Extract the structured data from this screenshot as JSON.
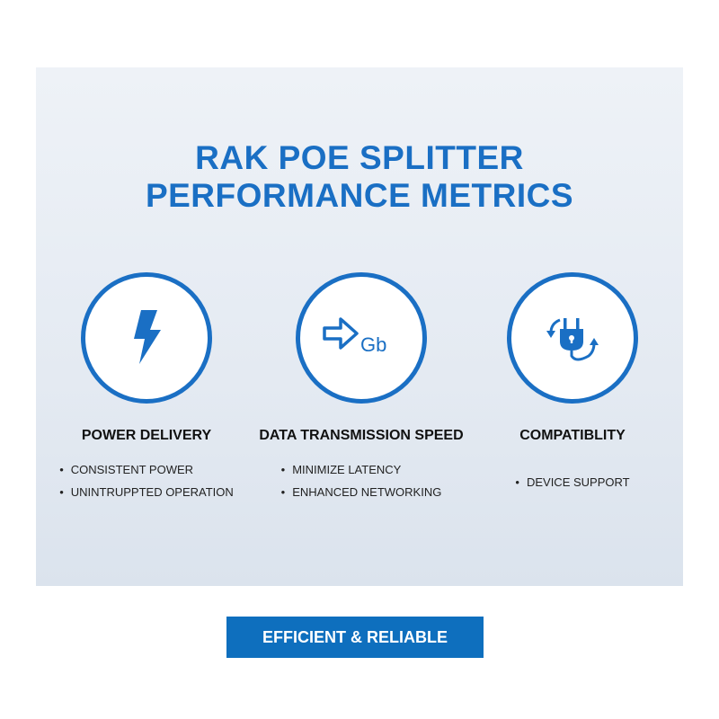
{
  "title": {
    "line1": "RAK POE SPLITTER",
    "line2": "PERFORMANCE METRICS"
  },
  "accent_color": "#1a6fc4",
  "metrics": [
    {
      "icon": "lightning-bolt-icon",
      "heading": "POWER DELIVERY",
      "bullets": [
        "CONSISTENT POWER",
        "UNINTRUPPTED OPERATION"
      ]
    },
    {
      "icon": "arrow-gb-icon",
      "icon_text": "Gb",
      "heading": "DATA TRANSMISSION SPEED",
      "bullets": [
        "MINIMIZE LATENCY",
        "ENHANCED NETWORKING"
      ]
    },
    {
      "icon": "plug-cycle-icon",
      "heading": "COMPATIBLITY",
      "bullets": [
        "DEVICE SUPPORT"
      ]
    }
  ],
  "button": {
    "label": "EFFICIENT & RELIABLE",
    "color": "#0e6fbe"
  }
}
